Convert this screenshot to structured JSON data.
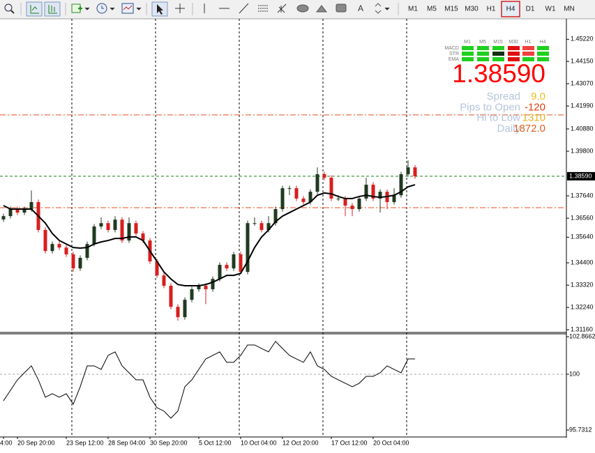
{
  "toolbar": {
    "drawing_letter": "A",
    "timeframes": [
      "M1",
      "M5",
      "M15",
      "M30",
      "H1",
      "H4",
      "D1",
      "W1",
      "MN"
    ],
    "active": "H4"
  },
  "signal_panel": {
    "columns": [
      "M1",
      "M5",
      "M15",
      "M30",
      "H1",
      "H4"
    ],
    "rows": [
      {
        "name": "MACD",
        "cells": [
          "#1fd01f",
          "#1fd01f",
          "#1fd01f",
          "#e01010",
          "#f04040",
          "#1fd01f"
        ]
      },
      {
        "name": "STR",
        "cells": [
          "#1fd01f",
          "#1fd01f",
          "#103010",
          "#e01010",
          "#f04040",
          "#1fd01f"
        ]
      },
      {
        "name": "EMA",
        "cells": [
          "#1fd01f",
          "#1fd01f",
          "#1fd01f",
          "#e01010",
          "#1fd01f",
          "#1fd01f"
        ]
      }
    ],
    "price": "1.38590",
    "price_color": "#ff0000",
    "stats": [
      {
        "label": "Spread",
        "value": "9.0",
        "color": "#e8c020"
      },
      {
        "label": "Pips to Open",
        "value": "-120",
        "color": "#e04010"
      },
      {
        "label": "Hi to Low",
        "value": "1310",
        "color": "#e8b020"
      },
      {
        "label": "Daily",
        "value": "1872.0",
        "color": "#e06020"
      }
    ]
  },
  "chart_data": [
    {
      "type": "candlestick",
      "categories": [
        "4:00",
        null,
        "20 Sep 20:00",
        null,
        null,
        null,
        null,
        null,
        null,
        "23 Sep 12:00",
        null,
        null,
        null,
        null,
        null,
        "28 Sep 04:00",
        null,
        null,
        null,
        null,
        null,
        "30 Sep 20:00",
        null,
        null,
        null,
        null,
        null,
        null,
        "5 Oct 12:00",
        null,
        null,
        null,
        null,
        null,
        "10 Oct 04:00",
        null,
        null,
        null,
        null,
        null,
        "12 Oct 20:00",
        null,
        null,
        null,
        null,
        null,
        null,
        "17 Oct 12:00",
        null,
        null,
        null,
        null,
        null,
        "20 Oct 04:00",
        null,
        null,
        null,
        null,
        null,
        null
      ],
      "open": [
        1.365,
        1.3666,
        1.37,
        1.3683,
        1.37,
        1.3734,
        1.3599,
        1.3497,
        1.3531,
        1.3514,
        1.3481,
        1.3413,
        1.3464,
        1.3531,
        1.3616,
        1.3632,
        1.3599,
        1.3649,
        1.3548,
        1.3632,
        1.3582,
        1.3548,
        1.3447,
        1.3379,
        1.3329,
        1.3227,
        1.3177,
        1.3261,
        1.3312,
        1.3329,
        1.3312,
        1.3362,
        1.343,
        1.3413,
        1.3481,
        1.3396,
        1.3632,
        1.3632,
        1.3599,
        1.3632,
        1.37,
        1.3801,
        1.3801,
        1.3751,
        1.3734,
        1.3784,
        1.3869,
        1.3852,
        1.3751,
        1.3751,
        1.3717,
        1.37,
        1.3751,
        1.3818,
        1.3751,
        1.3784,
        1.3734,
        1.3767,
        1.3869,
        1.3902
      ],
      "high": [
        1.3678,
        1.3712,
        1.3712,
        1.3712,
        1.379,
        1.3746,
        1.3611,
        1.3543,
        1.3543,
        1.3526,
        1.3493,
        1.3476,
        1.3543,
        1.3628,
        1.366,
        1.3644,
        1.3666,
        1.3661,
        1.366,
        1.3644,
        1.3594,
        1.356,
        1.3459,
        1.3391,
        1.3341,
        1.3239,
        1.3273,
        1.3324,
        1.3341,
        1.3341,
        1.3374,
        1.3442,
        1.3442,
        1.3493,
        1.3493,
        1.3644,
        1.366,
        1.3644,
        1.3666,
        1.3712,
        1.3813,
        1.3813,
        1.3813,
        1.3763,
        1.3796,
        1.3902,
        1.3881,
        1.3864,
        1.3767,
        1.3763,
        1.3729,
        1.3763,
        1.3852,
        1.383,
        1.3796,
        1.3796,
        1.3801,
        1.3881,
        1.3936,
        1.3914
      ],
      "low": [
        1.3638,
        1.3654,
        1.3671,
        1.3671,
        1.3688,
        1.3587,
        1.3485,
        1.3485,
        1.3502,
        1.3469,
        1.3396,
        1.3401,
        1.3452,
        1.3519,
        1.3604,
        1.3587,
        1.3587,
        1.3536,
        1.3536,
        1.357,
        1.3536,
        1.3435,
        1.3367,
        1.3317,
        1.3215,
        1.316,
        1.3165,
        1.3249,
        1.33,
        1.324,
        1.33,
        1.335,
        1.3401,
        1.3401,
        1.3384,
        1.3384,
        1.362,
        1.3587,
        1.3587,
        1.362,
        1.3688,
        1.3767,
        1.3739,
        1.3722,
        1.3722,
        1.3772,
        1.384,
        1.3739,
        1.3739,
        1.3666,
        1.3666,
        1.3688,
        1.3739,
        1.3739,
        1.3683,
        1.37,
        1.3722,
        1.3755,
        1.3857,
        1.3847
      ],
      "close": [
        1.3666,
        1.37,
        1.3683,
        1.37,
        1.3734,
        1.3599,
        1.3497,
        1.3531,
        1.3514,
        1.3481,
        1.3413,
        1.3464,
        1.3531,
        1.3616,
        1.3632,
        1.3599,
        1.3649,
        1.3548,
        1.3632,
        1.3582,
        1.3548,
        1.3447,
        1.3379,
        1.3329,
        1.3227,
        1.3177,
        1.3261,
        1.3312,
        1.3329,
        1.3312,
        1.3362,
        1.343,
        1.3413,
        1.3481,
        1.3396,
        1.3632,
        1.3632,
        1.3599,
        1.3632,
        1.37,
        1.3801,
        1.3801,
        1.3751,
        1.3734,
        1.3784,
        1.3869,
        1.3852,
        1.3751,
        1.3751,
        1.3717,
        1.37,
        1.3751,
        1.3818,
        1.3751,
        1.3784,
        1.3734,
        1.3767,
        1.3869,
        1.3902,
        1.3859
      ],
      "up_color": "#203a20",
      "down_color": "#d81e1e",
      "ma": {
        "color": "#000000",
        "values": [
          1.3717,
          1.37,
          1.37,
          1.37,
          1.37,
          1.3666,
          1.3632,
          1.3582,
          1.3548,
          1.3531,
          1.3514,
          1.3511,
          1.3514,
          1.3531,
          1.3541,
          1.3548,
          1.3558,
          1.3558,
          1.3565,
          1.3565,
          1.3548,
          1.3497,
          1.3447,
          1.3396,
          1.3362,
          1.3335,
          1.3329,
          1.3329,
          1.3329,
          1.3335,
          1.3346,
          1.3362,
          1.3379,
          1.3379,
          1.3389,
          1.3447,
          1.3514,
          1.3565,
          1.3599,
          1.3639,
          1.3666,
          1.3683,
          1.37,
          1.3717,
          1.3734,
          1.3767,
          1.3778,
          1.3774,
          1.3761,
          1.3751,
          1.3751,
          1.3761,
          1.3767,
          1.3761,
          1.3757,
          1.3761,
          1.3767,
          1.3784,
          1.3808,
          1.3818
        ]
      },
      "levels": [
        {
          "value": 1.3859,
          "color": "#1a7a1a",
          "style": "dash"
        },
        {
          "value": 1.4156,
          "color": "#e05020",
          "style": "dashdot"
        },
        {
          "value": 1.3707,
          "color": "#e05020",
          "style": "dashdot"
        }
      ],
      "last_price": {
        "value": 1.3859,
        "label": "1.38590"
      },
      "ylim": [
        1.3103,
        1.4621
      ],
      "yticks": [
        {
          "value": 1.4522,
          "label": "1.45220"
        },
        {
          "value": 1.4415,
          "label": "1.44150"
        },
        {
          "value": 1.4307,
          "label": "1.43070"
        },
        {
          "value": 1.4199,
          "label": "1.41990"
        },
        {
          "value": 1.4088,
          "label": "1.40880"
        },
        {
          "value": 1.398,
          "label": "1.39800"
        },
        {
          "value": 1.3764,
          "label": "1.37640"
        },
        {
          "value": 1.3656,
          "label": "1.36560"
        },
        {
          "value": 1.3564,
          "label": "1.35640"
        },
        {
          "value": 1.344,
          "label": "1.34400"
        },
        {
          "value": 1.3332,
          "label": "1.33320"
        },
        {
          "value": 1.3224,
          "label": "1.32240"
        },
        {
          "value": 1.3116,
          "label": "1.31160"
        }
      ]
    },
    {
      "type": "line",
      "color": "#000000",
      "values": [
        97.97,
        98.77,
        99.57,
        100.11,
        100.64,
        99.57,
        98.24,
        98.51,
        98.24,
        98.51,
        97.71,
        99.04,
        100.64,
        100.64,
        100.37,
        101.44,
        101.71,
        100.64,
        100.11,
        99.57,
        99.57,
        98.24,
        97.44,
        97.18,
        96.64,
        97.18,
        99.04,
        99.57,
        100.37,
        101.17,
        101.44,
        101.71,
        100.91,
        100.91,
        101.44,
        102.24,
        102.24,
        101.97,
        101.71,
        102.51,
        101.97,
        101.44,
        101.17,
        100.91,
        101.71,
        100.64,
        100.37,
        99.84,
        99.57,
        99.31,
        99.04,
        99.31,
        99.84,
        99.84,
        100.11,
        100.64,
        100.37,
        100.11,
        101.17,
        101.17
      ],
      "reference_line": 100,
      "ylim": [
        95.2,
        103.09
      ],
      "yticks": [
        102.8662,
        100,
        95.7312
      ]
    }
  ]
}
